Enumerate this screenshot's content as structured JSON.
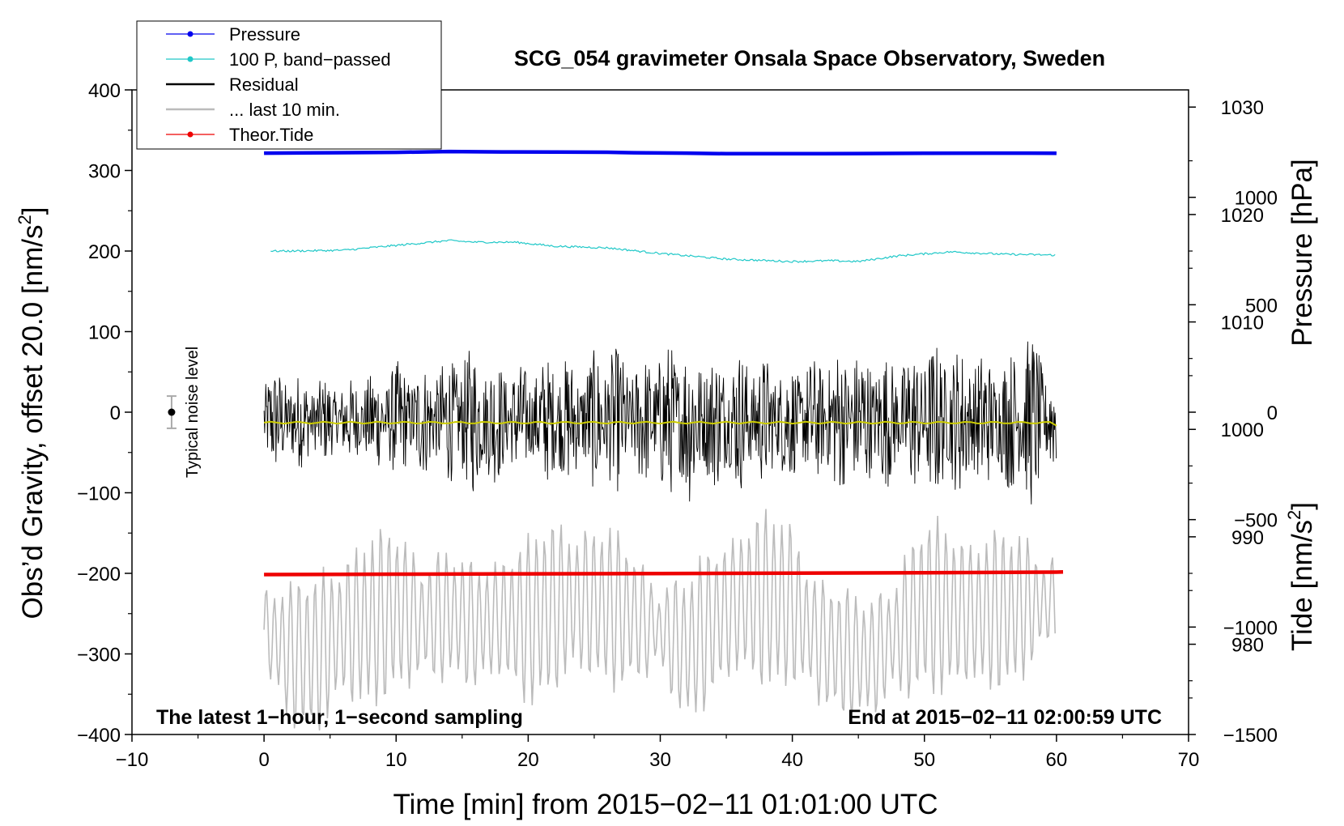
{
  "chart_data": {
    "type": "line",
    "title": "SCG_054 gravimeter Onsala Space Observatory, Sweden",
    "xlabel": "Time [min] from 2015−02−11 01:01:00 UTC",
    "ylabel": "Obs’d Gravity, offset 20.0 [nm/s",
    "ylabel_sup": "2",
    "ylabel_close": "]",
    "y2label_pressure": "Pressure [hPa]",
    "y2label_tide": "Tide [nm/s",
    "y2label_tide_sup": "2",
    "y2label_tide_close": "]",
    "xlim": [
      -10,
      70
    ],
    "ylim": [
      -400,
      400
    ],
    "pressure_lim": [
      971.6,
      1031.6
    ],
    "tide_lim": [
      -1500,
      1500
    ],
    "x_ticks": [
      {
        "v": -10,
        "label": "−10"
      },
      {
        "v": 0,
        "label": "0"
      },
      {
        "v": 10,
        "label": "10"
      },
      {
        "v": 20,
        "label": "20"
      },
      {
        "v": 30,
        "label": "30"
      },
      {
        "v": 40,
        "label": "40"
      },
      {
        "v": 50,
        "label": "50"
      },
      {
        "v": 60,
        "label": "60"
      },
      {
        "v": 70,
        "label": "70"
      }
    ],
    "y_ticks": [
      {
        "v": 400,
        "label": "400"
      },
      {
        "v": 300,
        "label": "300"
      },
      {
        "v": 200,
        "label": "200"
      },
      {
        "v": 100,
        "label": "100"
      },
      {
        "v": 0,
        "label": "0"
      },
      {
        "v": -100,
        "label": "−100"
      },
      {
        "v": -200,
        "label": "−200"
      },
      {
        "v": -300,
        "label": "−300"
      },
      {
        "v": -400,
        "label": "−400"
      }
    ],
    "pressure_ticks": [
      {
        "v": 1030,
        "label": "1030"
      },
      {
        "v": 1020,
        "label": "1020"
      },
      {
        "v": 1010,
        "label": "1010"
      },
      {
        "v": 1000,
        "label": "1000"
      },
      {
        "v": 990,
        "label": "990"
      },
      {
        "v": 980,
        "label": "980"
      }
    ],
    "tide_ticks": [
      {
        "v": 1000,
        "label": "1000"
      },
      {
        "v": 500,
        "label": "500"
      },
      {
        "v": 0,
        "label": "0"
      },
      {
        "v": -500,
        "label": "−500"
      },
      {
        "v": -1000,
        "label": "−1000"
      },
      {
        "v": -1500,
        "label": "−1500"
      }
    ],
    "legend": [
      {
        "label": "Pressure",
        "color": "#0000ee",
        "marker": true
      },
      {
        "label": "100 P, band−passed",
        "color": "#20c8c8",
        "marker": true
      },
      {
        "label": "Residual",
        "color": "#000000",
        "marker": false
      },
      {
        "label": "... last 10 min.",
        "color": "#bbbbbb",
        "marker": false
      },
      {
        "label": "Theor.Tide",
        "color": "#ee0000",
        "marker": true
      }
    ],
    "annotations": {
      "bottom_left": "The latest 1−hour, 1−second sampling",
      "bottom_right": "End at 2015−02−11 02:00:59 UTC",
      "noise": "Typical noise level"
    },
    "noise_bar": {
      "x": -7,
      "center": 0,
      "low": -20,
      "high": 20
    },
    "series": [
      {
        "name": "Pressure",
        "color": "#0000ee",
        "x": [
          0,
          5,
          10,
          14,
          18,
          22,
          26,
          28,
          32,
          35,
          40,
          45,
          50,
          55,
          60
        ],
        "values": [
          321.5,
          322.0,
          322.5,
          323.5,
          323.0,
          322.8,
          322.6,
          322.0,
          321.5,
          320.8,
          320.8,
          321.0,
          321.3,
          321.5,
          321.4
        ]
      },
      {
        "name": "100 P, band-passed",
        "color": "#20c8c8",
        "x": [
          0.5,
          2,
          6,
          10,
          14,
          16,
          19,
          22,
          26,
          30,
          35,
          40,
          43,
          45,
          48,
          52,
          56,
          60
        ],
        "values": [
          200,
          200,
          201,
          207,
          213,
          211,
          211,
          206,
          204,
          197,
          190,
          187,
          188,
          187,
          194,
          199,
          196,
          195
        ]
      },
      {
        "name": "Theor.Tide",
        "color": "#ee0000",
        "x": [
          0,
          10,
          20,
          30,
          40,
          50,
          60,
          60.5
        ],
        "values": [
          -201.5,
          -201.0,
          -200.6,
          -200.2,
          -199.8,
          -199.3,
          -198.5,
          -198.3
        ]
      },
      {
        "name": "Residual",
        "color": "#000000",
        "x": [
          0,
          4,
          6,
          8,
          10,
          12,
          14,
          16,
          18,
          20,
          22,
          24,
          26,
          28,
          30,
          32,
          34,
          36,
          38,
          40,
          42,
          44,
          46,
          48,
          50,
          52,
          54,
          56,
          58,
          60
        ],
        "values": [
          70,
          55,
          50,
          60,
          75,
          70,
          80,
          95,
          75,
          70,
          85,
          75,
          100,
          75,
          95,
          110,
          85,
          90,
          80,
          75,
          80,
          95,
          90,
          80,
          100,
          95,
          90,
          80,
          115,
          60
        ]
      },
      {
        "name": "Residual smoothed",
        "color": "#cccc00",
        "x": [
          0,
          10,
          20,
          30,
          40,
          50,
          59.5,
          60
        ],
        "values": [
          -13,
          -13,
          -13,
          -13,
          -13,
          -13,
          -13,
          -16
        ]
      },
      {
        "name": "... last 10 min.",
        "color": "#bbbbbb",
        "x": [
          0,
          2,
          4,
          6,
          8,
          10,
          12,
          14,
          16,
          18,
          20,
          22,
          24,
          26,
          28,
          30,
          32,
          34,
          36,
          38,
          40,
          42,
          44,
          46,
          48,
          50,
          52,
          54,
          56,
          58,
          60
        ],
        "values": [
          -270,
          -300,
          -300,
          -270,
          -260,
          -245,
          -260,
          -250,
          -265,
          -255,
          -260,
          -240,
          -235,
          -240,
          -255,
          -270,
          -295,
          -260,
          -235,
          -230,
          -240,
          -285,
          -300,
          -305,
          -275,
          -240,
          -245,
          -250,
          -245,
          -240,
          -235
        ]
      }
    ]
  }
}
